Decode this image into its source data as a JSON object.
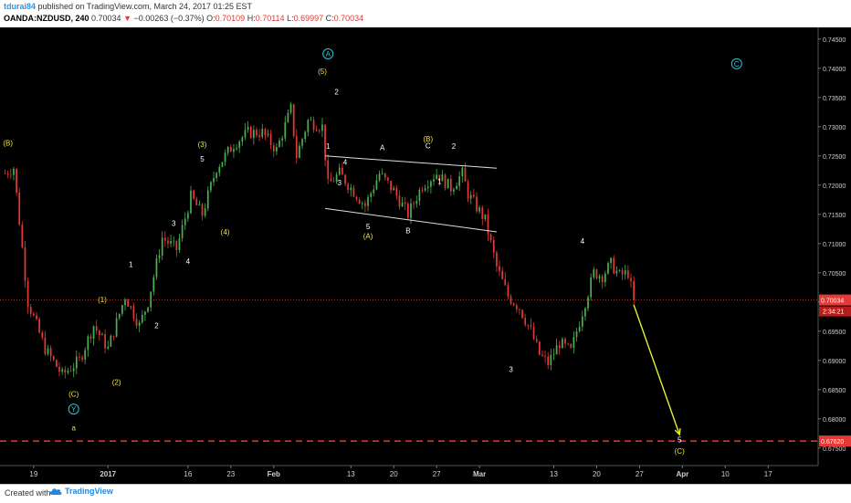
{
  "header": {
    "user": "tdurai84",
    "published": "published on TradingView.com, March 24, 2017 01:25 EST",
    "symbol": "OANDA:NZDUSD, 240",
    "last": "0.70034",
    "arrow": "▼",
    "change": "−0.00263 (−0.37%)",
    "open_label": "O:",
    "open": "0.70109",
    "high_label": "H:",
    "high": "0.70114",
    "low_label": "L:",
    "low": "0.69997",
    "close_label": "C:",
    "close": "0.70034"
  },
  "footer": {
    "created_with": "Created with",
    "brand": "TradingView"
  },
  "colors": {
    "background": "#000000",
    "up_candle": "#4caf50",
    "down_candle": "#e53935",
    "wave_label_yellow": "#f0e442",
    "wave_label_white": "#ffffff",
    "circle_label": "#26c6da",
    "arrow": "#e6ee33",
    "price_line": "#e53935"
  },
  "chart_data": {
    "type": "candlestick",
    "ylim": [
      0.672,
      0.747
    ],
    "y_ticks": [
      "0.74500",
      "0.74000",
      "0.73500",
      "0.73000",
      "0.72500",
      "0.72000",
      "0.71500",
      "0.71000",
      "0.70500",
      "0.70000",
      "0.69500",
      "0.69000",
      "0.68500",
      "0.68000",
      "0.67500"
    ],
    "x_ticks": [
      {
        "label": "19",
        "bar": 10
      },
      {
        "label": "2017",
        "bar": 36
      },
      {
        "label": "16",
        "bar": 64
      },
      {
        "label": "23",
        "bar": 79
      },
      {
        "label": "Feb",
        "bar": 94
      },
      {
        "label": "13",
        "bar": 121
      },
      {
        "label": "20",
        "bar": 136
      },
      {
        "label": "27",
        "bar": 151
      },
      {
        "label": "Mar",
        "bar": 166
      },
      {
        "label": "13",
        "bar": 192
      },
      {
        "label": "20",
        "bar": 207
      },
      {
        "label": "27",
        "bar": 222
      },
      {
        "label": "Apr",
        "bar": 237
      },
      {
        "label": "10",
        "bar": 252
      },
      {
        "label": "17",
        "bar": 267
      }
    ],
    "bar_count": 285,
    "last_bar": 220,
    "price_path": [
      [
        0,
        0.722
      ],
      [
        3,
        0.723
      ],
      [
        8,
        0.7
      ],
      [
        14,
        0.692
      ],
      [
        20,
        0.6875
      ],
      [
        26,
        0.69
      ],
      [
        31,
        0.696
      ],
      [
        36,
        0.692
      ],
      [
        42,
        0.701
      ],
      [
        47,
        0.696
      ],
      [
        50,
        0.7
      ],
      [
        55,
        0.711
      ],
      [
        60,
        0.709
      ],
      [
        65,
        0.718
      ],
      [
        69,
        0.715
      ],
      [
        74,
        0.723
      ],
      [
        80,
        0.727
      ],
      [
        85,
        0.729
      ],
      [
        90,
        0.729
      ],
      [
        95,
        0.726
      ],
      [
        100,
        0.733
      ],
      [
        102,
        0.725
      ],
      [
        106,
        0.731
      ],
      [
        111,
        0.73
      ],
      [
        113,
        0.72
      ],
      [
        117,
        0.722
      ],
      [
        121,
        0.7195
      ],
      [
        126,
        0.7165
      ],
      [
        131,
        0.722
      ],
      [
        136,
        0.719
      ],
      [
        141,
        0.715
      ],
      [
        146,
        0.72
      ],
      [
        151,
        0.722
      ],
      [
        156,
        0.7195
      ],
      [
        160,
        0.722
      ],
      [
        162,
        0.7185
      ],
      [
        168,
        0.714
      ],
      [
        172,
        0.706
      ],
      [
        176,
        0.701
      ],
      [
        180,
        0.699
      ],
      [
        184,
        0.695
      ],
      [
        187,
        0.691
      ],
      [
        190,
        0.6895
      ],
      [
        194,
        0.693
      ],
      [
        198,
        0.6915
      ],
      [
        200,
        0.695
      ],
      [
        203,
        0.7
      ],
      [
        206,
        0.705
      ],
      [
        209,
        0.7045
      ],
      [
        212,
        0.7065
      ],
      [
        215,
        0.7045
      ],
      [
        218,
        0.705
      ],
      [
        220,
        0.7003
      ]
    ],
    "current_price": "0.70034",
    "countdown": "2:34:21",
    "target_price": "0.67620",
    "current_value": 0.70034,
    "target_value": 0.6762,
    "channel_upper": [
      [
        112,
        0.725
      ],
      [
        172,
        0.7229
      ]
    ],
    "channel_lower": [
      [
        112,
        0.716
      ],
      [
        172,
        0.712
      ]
    ],
    "projection_arrow": [
      [
        220,
        0.6995
      ],
      [
        236,
        0.6773
      ]
    ],
    "wave_labels": [
      {
        "text": "(B)",
        "bar": 1,
        "price": 0.7268,
        "color": "yellow"
      },
      {
        "text": "(C)",
        "bar": 24,
        "price": 0.6838,
        "color": "yellow"
      },
      {
        "text": "Y",
        "bar": 24,
        "price": 0.6812,
        "color": "circle"
      },
      {
        "text": "a",
        "bar": 24,
        "price": 0.678,
        "color": "yellow"
      },
      {
        "text": "(1)",
        "bar": 34,
        "price": 0.7,
        "color": "yellow"
      },
      {
        "text": "(2)",
        "bar": 39,
        "price": 0.6858,
        "color": "yellow"
      },
      {
        "text": "1",
        "bar": 44,
        "price": 0.706,
        "color": "white"
      },
      {
        "text": "2",
        "bar": 53,
        "price": 0.6955,
        "color": "white"
      },
      {
        "text": "3",
        "bar": 59,
        "price": 0.713,
        "color": "white"
      },
      {
        "text": "4",
        "bar": 64,
        "price": 0.7065,
        "color": "white"
      },
      {
        "text": "5",
        "bar": 69,
        "price": 0.724,
        "color": "white"
      },
      {
        "text": "(3)",
        "bar": 69,
        "price": 0.7265,
        "color": "yellow"
      },
      {
        "text": "(4)",
        "bar": 77,
        "price": 0.7115,
        "color": "yellow"
      },
      {
        "text": "A",
        "bar": 113,
        "price": 0.742,
        "color": "circle"
      },
      {
        "text": "(5)",
        "bar": 111,
        "price": 0.739,
        "color": "yellow"
      },
      {
        "text": "2",
        "bar": 116,
        "price": 0.7355,
        "color": "white"
      },
      {
        "text": "1",
        "bar": 113,
        "price": 0.7262,
        "color": "white"
      },
      {
        "text": "4",
        "bar": 119,
        "price": 0.7235,
        "color": "white"
      },
      {
        "text": "3",
        "bar": 117,
        "price": 0.72,
        "color": "white"
      },
      {
        "text": "5",
        "bar": 127,
        "price": 0.7125,
        "color": "white"
      },
      {
        "text": "(A)",
        "bar": 127,
        "price": 0.7108,
        "color": "yellow"
      },
      {
        "text": "A",
        "bar": 132,
        "price": 0.726,
        "color": "white"
      },
      {
        "text": "B",
        "bar": 141,
        "price": 0.7118,
        "color": "white"
      },
      {
        "text": "(B)",
        "bar": 148,
        "price": 0.7275,
        "color": "yellow"
      },
      {
        "text": "C",
        "bar": 148,
        "price": 0.7263,
        "color": "white"
      },
      {
        "text": "2",
        "bar": 157,
        "price": 0.7262,
        "color": "white"
      },
      {
        "text": "1",
        "bar": 152,
        "price": 0.7202,
        "color": "white"
      },
      {
        "text": "3",
        "bar": 177,
        "price": 0.688,
        "color": "white"
      },
      {
        "text": "4",
        "bar": 202,
        "price": 0.71,
        "color": "white"
      },
      {
        "text": "C",
        "bar": 256,
        "price": 0.7403,
        "color": "circle"
      },
      {
        "text": "5",
        "bar": 236,
        "price": 0.676,
        "color": "white"
      },
      {
        "text": "(C)",
        "bar": 236,
        "price": 0.674,
        "color": "yellow"
      }
    ]
  }
}
